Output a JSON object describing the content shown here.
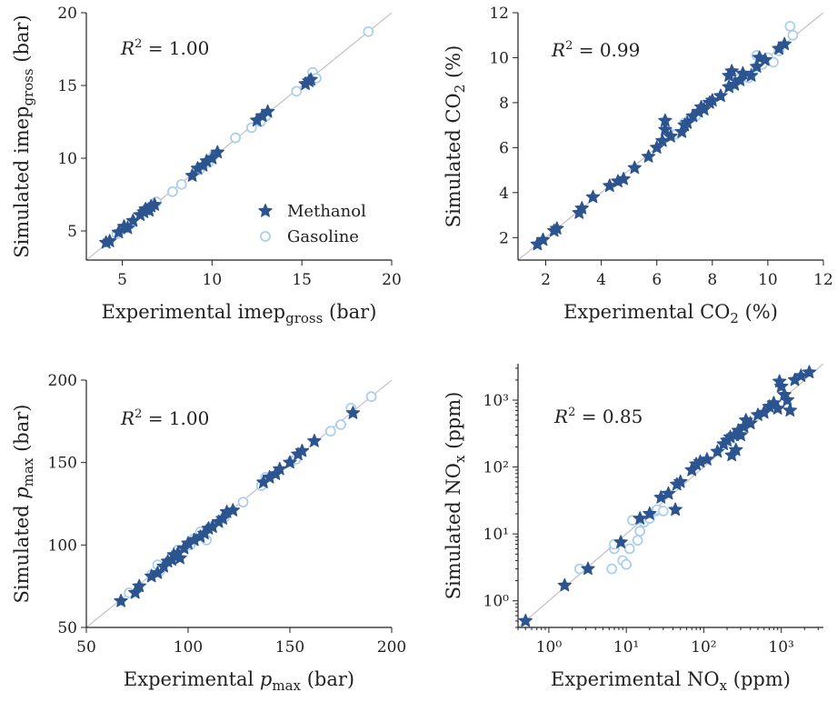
{
  "colors": {
    "methanol": "#2c5590",
    "gasoline": "#a9cdee",
    "identity_line": "#bbbbbb"
  },
  "legend": [
    {
      "label": "Methanol",
      "marker": "star"
    },
    {
      "label": "Gasoline",
      "marker": "open-circle"
    }
  ],
  "chart_data": [
    {
      "id": "imep",
      "type": "scatter",
      "xlabel": "Experimental imep",
      "xlabel_sub": "gross",
      "xlabel_unit": "(bar)",
      "ylabel": "Simulated imep",
      "ylabel_sub": "gross",
      "ylabel_unit": "(bar)",
      "annotation": "R² = 1.00",
      "scale": "linear",
      "xlim": [
        3,
        20
      ],
      "ylim": [
        3,
        20
      ],
      "xticks": [
        5,
        10,
        15,
        20
      ],
      "yticks": [
        5,
        10,
        15,
        20
      ],
      "legend_position": "lower-right",
      "series": [
        {
          "name": "Methanol",
          "points": [
            [
              4.1,
              4.2
            ],
            [
              4.3,
              4.3
            ],
            [
              4.8,
              4.9
            ],
            [
              5.1,
              5.3
            ],
            [
              5.3,
              5.2
            ],
            [
              5.6,
              5.7
            ],
            [
              6.0,
              6.1
            ],
            [
              6.2,
              6.3
            ],
            [
              6.3,
              6.5
            ],
            [
              6.5,
              6.4
            ],
            [
              6.6,
              6.7
            ],
            [
              6.8,
              6.8
            ],
            [
              8.9,
              8.8
            ],
            [
              9.2,
              9.3
            ],
            [
              9.5,
              9.5
            ],
            [
              9.7,
              9.8
            ],
            [
              10.0,
              10.0
            ],
            [
              10.3,
              10.4
            ],
            [
              12.5,
              12.6
            ],
            [
              12.8,
              12.9
            ],
            [
              13.1,
              13.2
            ],
            [
              15.2,
              15.1
            ],
            [
              15.4,
              15.3
            ],
            [
              15.5,
              15.4
            ]
          ]
        },
        {
          "name": "Gasoline",
          "points": [
            [
              4.7,
              4.8
            ],
            [
              5.0,
              5.1
            ],
            [
              5.5,
              5.5
            ],
            [
              6.9,
              7.0
            ],
            [
              7.8,
              7.7
            ],
            [
              8.3,
              8.2
            ],
            [
              9.3,
              9.2
            ],
            [
              9.8,
              9.7
            ],
            [
              10.1,
              10.2
            ],
            [
              11.3,
              11.4
            ],
            [
              12.2,
              12.1
            ],
            [
              12.7,
              12.5
            ],
            [
              13.0,
              12.9
            ],
            [
              14.7,
              14.6
            ],
            [
              15.6,
              15.9
            ],
            [
              15.8,
              15.5
            ],
            [
              18.7,
              18.7
            ]
          ]
        }
      ]
    },
    {
      "id": "co2",
      "type": "scatter",
      "xlabel": "Experimental CO",
      "xlabel_sub": "2",
      "xlabel_unit": "(%)",
      "ylabel": "Simulated CO",
      "ylabel_sub": "2",
      "ylabel_unit": "(%)",
      "annotation": "R² = 0.99",
      "scale": "linear",
      "xlim": [
        1,
        12
      ],
      "ylim": [
        1,
        12
      ],
      "xticks": [
        2,
        4,
        6,
        8,
        10,
        12
      ],
      "yticks": [
        2,
        4,
        6,
        8,
        10,
        12
      ],
      "series": [
        {
          "name": "Methanol",
          "points": [
            [
              1.7,
              1.7
            ],
            [
              1.9,
              1.9
            ],
            [
              2.3,
              2.3
            ],
            [
              2.4,
              2.4
            ],
            [
              3.2,
              3.1
            ],
            [
              3.3,
              3.3
            ],
            [
              3.7,
              3.8
            ],
            [
              4.3,
              4.3
            ],
            [
              4.6,
              4.5
            ],
            [
              4.8,
              4.6
            ],
            [
              5.2,
              5.1
            ],
            [
              5.7,
              5.6
            ],
            [
              6.0,
              6.0
            ],
            [
              6.2,
              6.3
            ],
            [
              6.3,
              6.8
            ],
            [
              6.3,
              7.2
            ],
            [
              6.5,
              6.5
            ],
            [
              6.9,
              6.7
            ],
            [
              7.0,
              7.0
            ],
            [
              7.1,
              7.1
            ],
            [
              7.3,
              7.4
            ],
            [
              7.5,
              7.6
            ],
            [
              7.6,
              7.8
            ],
            [
              7.7,
              7.7
            ],
            [
              7.9,
              8.0
            ],
            [
              8.0,
              8.1
            ],
            [
              8.3,
              8.3
            ],
            [
              8.6,
              8.7
            ],
            [
              8.7,
              9.4
            ],
            [
              8.8,
              8.8
            ],
            [
              9.0,
              9.0
            ],
            [
              9.1,
              9.3
            ],
            [
              9.4,
              9.2
            ],
            [
              9.6,
              9.6
            ],
            [
              9.7,
              10.0
            ],
            [
              9.9,
              9.9
            ],
            [
              10.4,
              10.4
            ],
            [
              10.6,
              10.6
            ],
            [
              8.6,
              9.2
            ]
          ]
        },
        {
          "name": "Gasoline",
          "points": [
            [
              6.4,
              6.7
            ],
            [
              6.7,
              6.6
            ],
            [
              7.0,
              7.1
            ],
            [
              7.2,
              7.3
            ],
            [
              7.4,
              7.4
            ],
            [
              8.7,
              8.8
            ],
            [
              8.9,
              9.0
            ],
            [
              9.0,
              9.1
            ],
            [
              9.3,
              9.1
            ],
            [
              9.6,
              9.6
            ],
            [
              9.6,
              10.1
            ],
            [
              9.8,
              9.7
            ],
            [
              10.0,
              10.0
            ],
            [
              10.2,
              9.8
            ],
            [
              10.4,
              10.3
            ],
            [
              10.8,
              11.4
            ],
            [
              10.9,
              11.0
            ]
          ]
        }
      ]
    },
    {
      "id": "pmax",
      "type": "scatter",
      "xlabel": "Experimental p",
      "xlabel_sub": "max",
      "xlabel_unit": "(bar)",
      "ylabel": "Simulated p",
      "ylabel_sub": "max",
      "ylabel_unit": "(bar)",
      "italic_symbol": true,
      "annotation": "R² = 1.00",
      "scale": "linear",
      "xlim": [
        50,
        200
      ],
      "ylim": [
        50,
        200
      ],
      "xticks": [
        50,
        100,
        150,
        200
      ],
      "yticks": [
        50,
        100,
        150,
        200
      ],
      "series": [
        {
          "name": "Methanol",
          "points": [
            [
              67,
              66
            ],
            [
              74,
              71
            ],
            [
              76,
              75
            ],
            [
              82,
              81
            ],
            [
              85,
              83
            ],
            [
              88,
              87
            ],
            [
              90,
              90
            ],
            [
              92,
              91
            ],
            [
              93,
              94
            ],
            [
              95,
              95
            ],
            [
              96,
              92
            ],
            [
              98,
              98
            ],
            [
              100,
              101
            ],
            [
              103,
              103
            ],
            [
              106,
              105
            ],
            [
              108,
              107
            ],
            [
              110,
              110
            ],
            [
              112,
              111
            ],
            [
              115,
              114
            ],
            [
              117,
              116
            ],
            [
              119,
              120
            ],
            [
              122,
              121
            ],
            [
              137,
              138
            ],
            [
              140,
              141
            ],
            [
              143,
              143
            ],
            [
              145,
              146
            ],
            [
              150,
              150
            ],
            [
              154,
              155
            ],
            [
              156,
              157
            ],
            [
              162,
              163
            ],
            [
              181,
              180
            ]
          ]
        },
        {
          "name": "Gasoline",
          "points": [
            [
              71,
              71
            ],
            [
              82,
              82
            ],
            [
              85,
              88
            ],
            [
              86,
              84
            ],
            [
              95,
              97
            ],
            [
              101,
              100
            ],
            [
              103,
              104
            ],
            [
              106,
              108
            ],
            [
              109,
              103
            ],
            [
              111,
              111
            ],
            [
              117,
              116
            ],
            [
              118,
              117
            ],
            [
              127,
              126
            ],
            [
              136,
              136
            ],
            [
              138,
              141
            ],
            [
              151,
              151
            ],
            [
              153,
              152
            ],
            [
              170,
              169
            ],
            [
              175,
              173
            ],
            [
              180,
              183
            ],
            [
              190,
              190
            ]
          ]
        }
      ]
    },
    {
      "id": "nox",
      "type": "scatter",
      "xlabel": "Experimental NO",
      "xlabel_sub": "x",
      "xlabel_unit": "(ppm)",
      "ylabel": "Simulated NO",
      "ylabel_sub": "x",
      "ylabel_unit": "(ppm)",
      "annotation": "R² = 0.85",
      "scale": "log",
      "xlim": [
        0.4,
        3500
      ],
      "ylim": [
        0.4,
        3500
      ],
      "xticks": [
        1,
        10,
        100,
        1000
      ],
      "yticks": [
        1,
        10,
        100,
        1000
      ],
      "tick_labels": [
        "10⁰",
        "10¹",
        "10²",
        "10³"
      ],
      "series": [
        {
          "name": "Methanol",
          "points": [
            [
              0.5,
              0.5
            ],
            [
              1.6,
              1.7
            ],
            [
              3.2,
              3.0
            ],
            [
              8.5,
              7.5
            ],
            [
              15,
              17
            ],
            [
              20,
              20
            ],
            [
              28,
              35
            ],
            [
              35,
              40
            ],
            [
              43,
              23
            ],
            [
              45,
              55
            ],
            [
              50,
              60
            ],
            [
              70,
              90
            ],
            [
              80,
              110
            ],
            [
              90,
              120
            ],
            [
              110,
              130
            ],
            [
              150,
              170
            ],
            [
              180,
              220
            ],
            [
              200,
              250
            ],
            [
              220,
              280
            ],
            [
              250,
              300
            ],
            [
              280,
              350
            ],
            [
              300,
              300
            ],
            [
              330,
              400
            ],
            [
              350,
              500
            ],
            [
              400,
              450
            ],
            [
              500,
              600
            ],
            [
              600,
              650
            ],
            [
              700,
              800
            ],
            [
              800,
              900
            ],
            [
              900,
              750
            ],
            [
              1000,
              1600
            ],
            [
              1100,
              1200
            ],
            [
              1200,
              1000
            ],
            [
              1300,
              700
            ],
            [
              1500,
              2000
            ],
            [
              1800,
              2300
            ],
            [
              2300,
              2600
            ],
            [
              950,
              1900
            ],
            [
              260,
              180
            ],
            [
              230,
              150
            ]
          ]
        },
        {
          "name": "Gasoline",
          "points": [
            [
              2.5,
              3.0
            ],
            [
              6.5,
              3.0
            ],
            [
              7,
              6
            ],
            [
              7,
              7
            ],
            [
              9,
              4
            ],
            [
              10,
              3.5
            ],
            [
              11,
              6
            ],
            [
              12,
              16
            ],
            [
              14,
              8
            ],
            [
              15,
              11
            ],
            [
              17,
              15
            ],
            [
              20,
              17
            ],
            [
              24,
              22
            ],
            [
              25,
              23
            ],
            [
              30,
              22
            ]
          ]
        }
      ]
    }
  ]
}
